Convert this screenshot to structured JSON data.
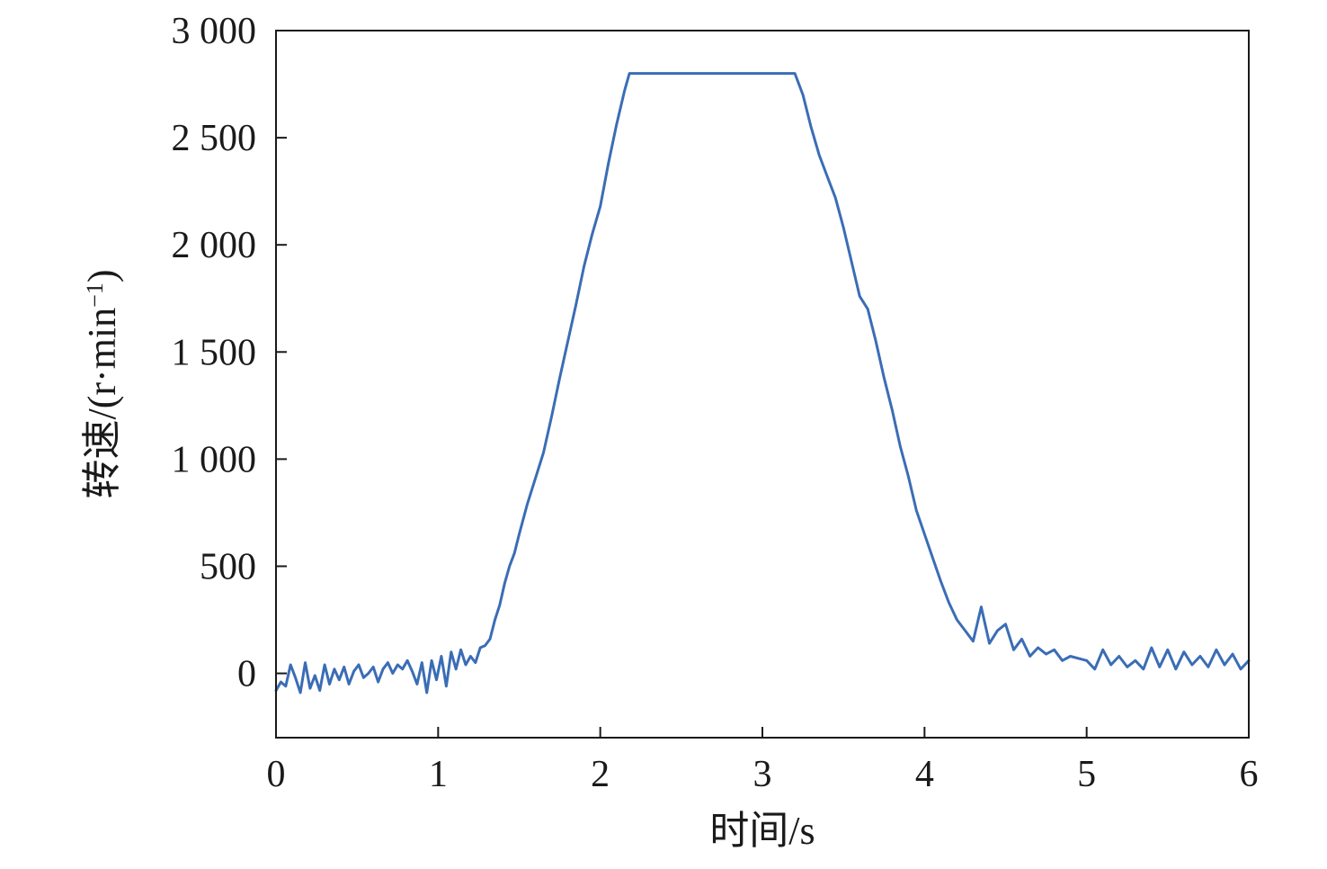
{
  "chart_data": {
    "type": "line",
    "title": "",
    "xlabel": "时间/s",
    "ylabel": "转速/(r·min",
    "ylabel_superscript": "−1",
    "ylabel_close": ")",
    "xlim": [
      0,
      6
    ],
    "ylim": [
      -300,
      3000
    ],
    "x_ticks": [
      {
        "value": 0,
        "label": "0"
      },
      {
        "value": 1,
        "label": "1"
      },
      {
        "value": 2,
        "label": "2"
      },
      {
        "value": 3,
        "label": "3"
      },
      {
        "value": 4,
        "label": "4"
      },
      {
        "value": 5,
        "label": "5"
      },
      {
        "value": 6,
        "label": "6"
      }
    ],
    "y_ticks": [
      {
        "value": 0,
        "label": "0"
      },
      {
        "value": 500,
        "label": "500"
      },
      {
        "value": 1000,
        "label": "1 000"
      },
      {
        "value": 1500,
        "label": "1 500"
      },
      {
        "value": 2000,
        "label": "2 000"
      },
      {
        "value": 2500,
        "label": "2 500"
      },
      {
        "value": 3000,
        "label": "3 000"
      }
    ],
    "grid": false,
    "legend": "none",
    "series": [
      {
        "color": "#3a6db5",
        "x": [
          0,
          0.03,
          0.06,
          0.09,
          0.12,
          0.15,
          0.18,
          0.21,
          0.24,
          0.27,
          0.3,
          0.33,
          0.36,
          0.39,
          0.42,
          0.45,
          0.48,
          0.51,
          0.54,
          0.57,
          0.6,
          0.63,
          0.66,
          0.69,
          0.72,
          0.75,
          0.78,
          0.81,
          0.84,
          0.87,
          0.9,
          0.93,
          0.96,
          0.99,
          1.02,
          1.05,
          1.08,
          1.11,
          1.14,
          1.17,
          1.2,
          1.23,
          1.26,
          1.29,
          1.32,
          1.35,
          1.38,
          1.41,
          1.44,
          1.47,
          1.5,
          1.55,
          1.6,
          1.65,
          1.7,
          1.75,
          1.8,
          1.85,
          1.9,
          1.95,
          2.0,
          2.05,
          2.1,
          2.15,
          2.18,
          2.3,
          2.5,
          2.7,
          2.9,
          3.1,
          3.2,
          3.25,
          3.3,
          3.35,
          3.4,
          3.45,
          3.5,
          3.55,
          3.6,
          3.65,
          3.7,
          3.75,
          3.8,
          3.85,
          3.9,
          3.95,
          4.0,
          4.05,
          4.1,
          4.15,
          4.2,
          4.25,
          4.3,
          4.35,
          4.4,
          4.45,
          4.5,
          4.55,
          4.6,
          4.65,
          4.7,
          4.75,
          4.8,
          4.85,
          4.9,
          4.95,
          5.0,
          5.05,
          5.1,
          5.15,
          5.2,
          5.25,
          5.3,
          5.35,
          5.4,
          5.45,
          5.5,
          5.55,
          5.6,
          5.65,
          5.7,
          5.75,
          5.8,
          5.85,
          5.9,
          5.95,
          6.0
        ],
        "y": [
          -80,
          -40,
          -60,
          40,
          -20,
          -90,
          50,
          -70,
          -10,
          -80,
          40,
          -50,
          20,
          -30,
          30,
          -50,
          10,
          40,
          -20,
          0,
          30,
          -40,
          20,
          50,
          0,
          40,
          20,
          60,
          10,
          -50,
          50,
          -90,
          60,
          -30,
          80,
          -60,
          100,
          20,
          110,
          40,
          80,
          50,
          120,
          130,
          160,
          250,
          320,
          420,
          500,
          560,
          650,
          790,
          910,
          1030,
          1200,
          1380,
          1550,
          1720,
          1900,
          2050,
          2180,
          2380,
          2560,
          2720,
          2800,
          2800,
          2800,
          2800,
          2800,
          2800,
          2800,
          2700,
          2550,
          2420,
          2320,
          2220,
          2080,
          1920,
          1760,
          1700,
          1550,
          1380,
          1230,
          1060,
          920,
          760,
          650,
          540,
          430,
          330,
          250,
          200,
          150,
          310,
          140,
          200,
          230,
          110,
          160,
          80,
          120,
          90,
          110,
          60,
          80,
          70,
          60,
          20,
          110,
          40,
          80,
          30,
          60,
          20,
          120,
          30,
          110,
          20,
          100,
          40,
          80,
          30,
          110,
          40,
          90,
          20,
          60
        ]
      }
    ]
  }
}
